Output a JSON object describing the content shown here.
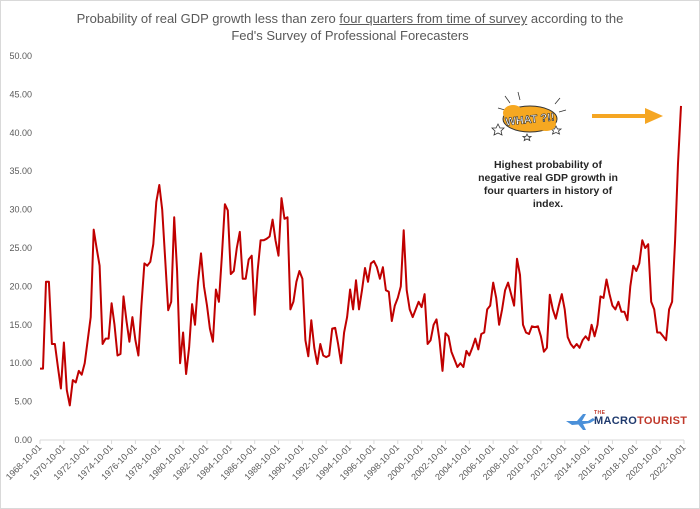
{
  "title": {
    "part1": "Probability of real GDP growth less than zero ",
    "underlined": "four quarters from time of survey",
    "part2": " according to the Fed's Survey of Professional Forecasters"
  },
  "annotation": {
    "sticker_text": "WHAT ?!!",
    "note": "Highest probability of negative real GDP growth in four quarters in history of index.",
    "arrow_color": "#f5a623",
    "sticker_color": "#f6a821"
  },
  "logo": {
    "small": "THE",
    "big_a": "MACRO",
    "big_b": "TOURIST"
  },
  "chart_data": {
    "type": "line",
    "title": "Probability of real GDP growth less than zero four quarters from time of survey according to the Fed's Survey of Professional Forecasters",
    "series_color": "#c00000",
    "ylim": [
      0,
      50
    ],
    "yticks": [
      "0.00",
      "5.00",
      "10.00",
      "15.00",
      "20.00",
      "25.00",
      "30.00",
      "35.00",
      "40.00",
      "45.00",
      "50.00"
    ],
    "xlim": [
      1968.75,
      2022.75
    ],
    "xticks": [
      "1968-10-01",
      "1970-10-01",
      "1972-10-01",
      "1974-10-01",
      "1976-10-01",
      "1978-10-01",
      "1980-10-01",
      "1982-10-01",
      "1984-10-01",
      "1986-10-01",
      "1988-10-01",
      "1990-10-01",
      "1992-10-01",
      "1994-10-01",
      "1996-10-01",
      "1998-10-01",
      "2000-10-01",
      "2002-10-01",
      "2004-10-01",
      "2006-10-01",
      "2008-10-01",
      "2010-10-01",
      "2012-10-01",
      "2014-10-01",
      "2016-10-01",
      "2018-10-01",
      "2020-10-01",
      "2022-10-01"
    ],
    "grid": false,
    "points": [
      [
        1968.75,
        9.3
      ],
      [
        1969.0,
        9.3
      ],
      [
        1969.25,
        20.6
      ],
      [
        1969.5,
        20.6
      ],
      [
        1969.75,
        12.5
      ],
      [
        1970.0,
        12.5
      ],
      [
        1970.25,
        9.5
      ],
      [
        1970.5,
        6.7
      ],
      [
        1970.75,
        12.7
      ],
      [
        1971.0,
        6.5
      ],
      [
        1971.25,
        4.5
      ],
      [
        1971.5,
        7.8
      ],
      [
        1971.75,
        7.5
      ],
      [
        1972.0,
        9.0
      ],
      [
        1972.25,
        8.5
      ],
      [
        1972.5,
        10.0
      ],
      [
        1972.75,
        13.0
      ],
      [
        1973.0,
        16.0
      ],
      [
        1973.25,
        27.4
      ],
      [
        1973.5,
        25.0
      ],
      [
        1973.75,
        22.7
      ],
      [
        1974.0,
        12.5
      ],
      [
        1974.25,
        13.2
      ],
      [
        1974.5,
        13.2
      ],
      [
        1974.75,
        17.8
      ],
      [
        1975.0,
        15.0
      ],
      [
        1975.25,
        11.0
      ],
      [
        1975.5,
        11.2
      ],
      [
        1975.75,
        18.7
      ],
      [
        1976.0,
        15.5
      ],
      [
        1976.25,
        12.8
      ],
      [
        1976.5,
        16.0
      ],
      [
        1976.75,
        13.0
      ],
      [
        1977.0,
        11.0
      ],
      [
        1977.25,
        17.5
      ],
      [
        1977.5,
        23.0
      ],
      [
        1977.75,
        22.7
      ],
      [
        1978.0,
        23.2
      ],
      [
        1978.25,
        25.5
      ],
      [
        1978.5,
        31.0
      ],
      [
        1978.75,
        33.2
      ],
      [
        1979.0,
        30.0
      ],
      [
        1979.25,
        23.5
      ],
      [
        1979.5,
        16.9
      ],
      [
        1979.75,
        18.0
      ],
      [
        1980.0,
        29.0
      ],
      [
        1980.25,
        22.0
      ],
      [
        1980.5,
        10.0
      ],
      [
        1980.75,
        14.0
      ],
      [
        1981.0,
        8.6
      ],
      [
        1981.25,
        12.0
      ],
      [
        1981.5,
        17.7
      ],
      [
        1981.75,
        15.0
      ],
      [
        1982.0,
        20.5
      ],
      [
        1982.25,
        24.3
      ],
      [
        1982.5,
        20.0
      ],
      [
        1982.75,
        17.5
      ],
      [
        1983.0,
        14.5
      ],
      [
        1983.25,
        12.8
      ],
      [
        1983.5,
        19.6
      ],
      [
        1983.75,
        18.0
      ],
      [
        1984.0,
        24.0
      ],
      [
        1984.25,
        30.7
      ],
      [
        1984.5,
        29.9
      ],
      [
        1984.75,
        21.6
      ],
      [
        1985.0,
        22.0
      ],
      [
        1985.25,
        25.0
      ],
      [
        1985.5,
        27.1
      ],
      [
        1985.75,
        21.0
      ],
      [
        1986.0,
        21.0
      ],
      [
        1986.25,
        23.5
      ],
      [
        1986.5,
        24.0
      ],
      [
        1986.75,
        16.3
      ],
      [
        1987.0,
        22.0
      ],
      [
        1987.25,
        26.0
      ],
      [
        1987.5,
        26.0
      ],
      [
        1987.75,
        26.2
      ],
      [
        1988.0,
        26.5
      ],
      [
        1988.25,
        28.7
      ],
      [
        1988.5,
        26.0
      ],
      [
        1988.75,
        24.0
      ],
      [
        1989.0,
        31.5
      ],
      [
        1989.25,
        28.8
      ],
      [
        1989.5,
        29.0
      ],
      [
        1989.75,
        17.0
      ],
      [
        1990.0,
        18.0
      ],
      [
        1990.25,
        20.6
      ],
      [
        1990.5,
        22.0
      ],
      [
        1990.75,
        21.0
      ],
      [
        1991.0,
        13.0
      ],
      [
        1991.25,
        10.9
      ],
      [
        1991.5,
        15.6
      ],
      [
        1991.75,
        12.0
      ],
      [
        1992.0,
        9.9
      ],
      [
        1992.25,
        12.5
      ],
      [
        1992.5,
        11.0
      ],
      [
        1992.75,
        10.8
      ],
      [
        1993.0,
        11.0
      ],
      [
        1993.25,
        14.5
      ],
      [
        1993.5,
        14.6
      ],
      [
        1993.75,
        12.5
      ],
      [
        1994.0,
        10.0
      ],
      [
        1994.25,
        14.0
      ],
      [
        1994.5,
        16.0
      ],
      [
        1994.75,
        19.6
      ],
      [
        1995.0,
        17.0
      ],
      [
        1995.25,
        20.8
      ],
      [
        1995.5,
        17.0
      ],
      [
        1995.75,
        19.5
      ],
      [
        1996.0,
        22.4
      ],
      [
        1996.25,
        20.6
      ],
      [
        1996.5,
        23.0
      ],
      [
        1996.75,
        23.3
      ],
      [
        1997.0,
        22.5
      ],
      [
        1997.25,
        21.0
      ],
      [
        1997.5,
        22.5
      ],
      [
        1997.75,
        19.5
      ],
      [
        1998.0,
        19.3
      ],
      [
        1998.25,
        15.5
      ],
      [
        1998.5,
        17.5
      ],
      [
        1998.75,
        18.5
      ],
      [
        1999.0,
        20.0
      ],
      [
        1999.25,
        27.3
      ],
      [
        1999.5,
        19.5
      ],
      [
        1999.75,
        17.0
      ],
      [
        2000.0,
        16.0
      ],
      [
        2000.25,
        17.0
      ],
      [
        2000.5,
        18.0
      ],
      [
        2000.75,
        17.3
      ],
      [
        2001.0,
        19.0
      ],
      [
        2001.25,
        12.5
      ],
      [
        2001.5,
        13.0
      ],
      [
        2001.75,
        15.0
      ],
      [
        2002.0,
        15.7
      ],
      [
        2002.25,
        13.0
      ],
      [
        2002.5,
        9.0
      ],
      [
        2002.75,
        13.9
      ],
      [
        2003.0,
        13.5
      ],
      [
        2003.25,
        11.5
      ],
      [
        2003.5,
        10.5
      ],
      [
        2003.75,
        9.5
      ],
      [
        2004.0,
        10.0
      ],
      [
        2004.25,
        9.5
      ],
      [
        2004.5,
        11.6
      ],
      [
        2004.75,
        11.0
      ],
      [
        2005.0,
        12.0
      ],
      [
        2005.25,
        13.2
      ],
      [
        2005.5,
        11.8
      ],
      [
        2005.75,
        13.8
      ],
      [
        2006.0,
        14.0
      ],
      [
        2006.25,
        17.0
      ],
      [
        2006.5,
        17.5
      ],
      [
        2006.75,
        20.5
      ],
      [
        2007.0,
        18.5
      ],
      [
        2007.25,
        15.0
      ],
      [
        2007.5,
        17.0
      ],
      [
        2007.75,
        19.5
      ],
      [
        2008.0,
        20.5
      ],
      [
        2008.25,
        19.0
      ],
      [
        2008.5,
        17.5
      ],
      [
        2008.75,
        23.6
      ],
      [
        2009.0,
        21.5
      ],
      [
        2009.25,
        15.0
      ],
      [
        2009.5,
        14.0
      ],
      [
        2009.75,
        13.8
      ],
      [
        2010.0,
        14.8
      ],
      [
        2010.25,
        14.7
      ],
      [
        2010.5,
        14.8
      ],
      [
        2010.75,
        13.5
      ],
      [
        2011.0,
        11.5
      ],
      [
        2011.25,
        12.0
      ],
      [
        2011.5,
        18.9
      ],
      [
        2011.75,
        17.0
      ],
      [
        2012.0,
        15.8
      ],
      [
        2012.25,
        17.5
      ],
      [
        2012.5,
        19.0
      ],
      [
        2012.75,
        17.0
      ],
      [
        2013.0,
        13.4
      ],
      [
        2013.25,
        12.5
      ],
      [
        2013.5,
        12.0
      ],
      [
        2013.75,
        12.5
      ],
      [
        2014.0,
        12.0
      ],
      [
        2014.25,
        13.0
      ],
      [
        2014.5,
        13.5
      ],
      [
        2014.75,
        13.0
      ],
      [
        2015.0,
        15.0
      ],
      [
        2015.25,
        13.5
      ],
      [
        2015.5,
        15.0
      ],
      [
        2015.75,
        18.7
      ],
      [
        2016.0,
        18.5
      ],
      [
        2016.25,
        20.9
      ],
      [
        2016.5,
        19.0
      ],
      [
        2016.75,
        17.5
      ],
      [
        2017.0,
        17.0
      ],
      [
        2017.25,
        18.0
      ],
      [
        2017.5,
        16.7
      ],
      [
        2017.75,
        16.7
      ],
      [
        2018.0,
        15.6
      ],
      [
        2018.25,
        20.0
      ],
      [
        2018.5,
        22.7
      ],
      [
        2018.75,
        22.0
      ],
      [
        2019.0,
        23.0
      ],
      [
        2019.25,
        26.0
      ],
      [
        2019.5,
        25.0
      ],
      [
        2019.75,
        25.5
      ],
      [
        2020.0,
        18.0
      ],
      [
        2020.25,
        17.0
      ],
      [
        2020.5,
        14.0
      ],
      [
        2020.75,
        14.0
      ],
      [
        2021.0,
        13.5
      ],
      [
        2021.25,
        13.0
      ],
      [
        2021.5,
        17.0
      ],
      [
        2021.75,
        18.0
      ],
      [
        2022.0,
        26.0
      ],
      [
        2022.25,
        36.0
      ],
      [
        2022.5,
        43.5
      ]
    ]
  }
}
